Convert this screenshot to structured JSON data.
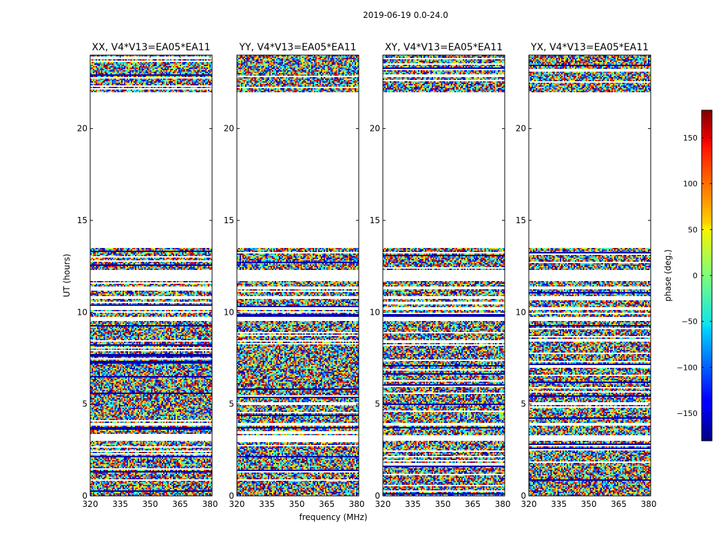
{
  "figure": {
    "suptitle": "2019-06-19 0.0-24.0"
  },
  "chart_data": {
    "type": "heatmap",
    "panels": [
      {
        "title": "XX, V4*V13=EA05*EA11"
      },
      {
        "title": "YY, V4*V13=EA05*EA11"
      },
      {
        "title": "XY, V4*V13=EA05*EA11"
      },
      {
        "title": "YX, V4*V13=EA05*EA11"
      }
    ],
    "xlabel": "frequency (MHz)",
    "ylabel": "UT (hours)",
    "xlim": [
      320,
      381
    ],
    "ylim": [
      0,
      24
    ],
    "x_ticks": [
      320,
      335,
      350,
      365,
      380
    ],
    "y_ticks": [
      0,
      5,
      10,
      15,
      20
    ],
    "colorbar": {
      "label": "phase (deg.)",
      "range": [
        -180,
        180
      ],
      "ticks": [
        -150,
        -100,
        -50,
        0,
        50,
        100,
        150
      ],
      "tick_labels": [
        "−150",
        "−100",
        "−50",
        "0",
        "50",
        "100",
        "150"
      ],
      "colormap": "jet"
    },
    "data_bands_ut_hours": [
      [
        0.0,
        3.0
      ],
      [
        3.3,
        3.8
      ],
      [
        4.0,
        4.3
      ],
      [
        4.4,
        8.4
      ],
      [
        8.5,
        9.5
      ],
      [
        9.8,
        10.1
      ],
      [
        10.3,
        10.7
      ],
      [
        10.9,
        11.2
      ],
      [
        11.4,
        11.7
      ],
      [
        12.3,
        13.5
      ],
      [
        22.0,
        24.0
      ]
    ],
    "grid": false
  }
}
